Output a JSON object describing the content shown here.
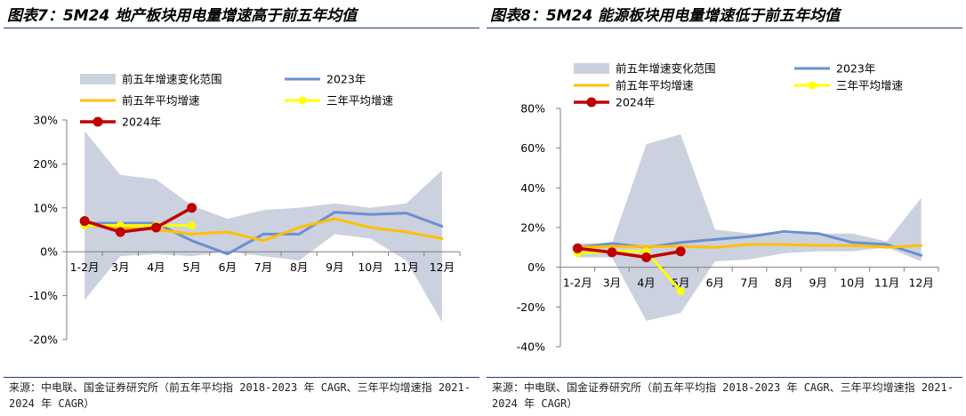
{
  "panels": [
    {
      "title": "图表7：5M24 地产板块用电量增速高于前五年均值",
      "source": "来源：中电联、国金证券研究所（前五年平均指 2018-2023 年 CAGR、三年平均增速指 2021-2024 年 CAGR）"
    },
    {
      "title": "图表8：5M24 能源板块用电量增速低于前五年均值",
      "source": "来源：中电联、国金证券研究所（前五年平均指 2018-2023 年 CAGR、三年平均增速指 2021-2024 年 CAGR）"
    }
  ],
  "colors": {
    "band": "#cbd1de",
    "s2023": "#6b8fd0",
    "avg5": "#ffc000",
    "avg3": "#ffff00",
    "s2024": "#c00000",
    "axis": "#7f7f7f",
    "title_rule": "#1f3b73"
  },
  "chart_data": [
    {
      "type": "line",
      "title": "",
      "x": [
        "1-2月",
        "3月",
        "4月",
        "5月",
        "6月",
        "7月",
        "8月",
        "9月",
        "10月",
        "11月",
        "12月"
      ],
      "ylim": [
        -20,
        30
      ],
      "yticks": [
        -20,
        -10,
        0,
        10,
        20,
        30
      ],
      "ytick_labels": [
        "-20%",
        "-10%",
        "0%",
        "10%",
        "20%",
        "30%"
      ],
      "legend_position": "top",
      "legend": [
        "前五年增速变化范围",
        "2023年",
        "前五年平均增速",
        "三年平均增速",
        "2024年"
      ],
      "band": {
        "name": "前五年增速变化范围",
        "upper": [
          27.5,
          17.5,
          16.5,
          10.5,
          7.5,
          9.5,
          10.0,
          11.0,
          10.0,
          11.0,
          18.5
        ],
        "lower": [
          -11.0,
          -1.0,
          -0.5,
          -1.0,
          0.0,
          -1.0,
          -2.0,
          4.0,
          3.0,
          -2.0,
          -16.0
        ]
      },
      "series": [
        {
          "name": "2023年",
          "values": [
            6.5,
            6.5,
            6.5,
            2.5,
            -0.5,
            4.0,
            4.0,
            9.0,
            8.5,
            8.8,
            5.8
          ]
        },
        {
          "name": "前五年平均增速",
          "values": [
            6.0,
            5.5,
            5.0,
            4.0,
            4.5,
            2.5,
            5.5,
            7.5,
            5.5,
            4.5,
            3.0
          ]
        },
        {
          "name": "三年平均增速",
          "values": [
            6.0,
            6.0,
            6.0,
            6.0,
            null,
            null,
            null,
            null,
            null,
            null,
            null
          ]
        },
        {
          "name": "2024年",
          "values": [
            7.0,
            4.5,
            5.5,
            10.0,
            null,
            null,
            null,
            null,
            null,
            null,
            null
          ]
        }
      ]
    },
    {
      "type": "line",
      "title": "",
      "x": [
        "1-2月",
        "3月",
        "4月",
        "5月",
        "6月",
        "7月",
        "8月",
        "9月",
        "10月",
        "11月",
        "12月"
      ],
      "ylim": [
        -40,
        80
      ],
      "yticks": [
        -40,
        -20,
        0,
        20,
        40,
        60,
        80
      ],
      "ytick_labels": [
        "-40%",
        "-20%",
        "0%",
        "20%",
        "40%",
        "60%",
        "80%"
      ],
      "legend_position": "top",
      "legend": [
        "前五年增速变化范围",
        "2023年",
        "前五年平均增速",
        "三年平均增速",
        "2024年"
      ],
      "band": {
        "name": "前五年增速变化范围",
        "upper": [
          12.0,
          12.0,
          62.0,
          67.0,
          19.0,
          17.0,
          17.0,
          17.0,
          17.0,
          13.0,
          35.0
        ],
        "lower": [
          5.0,
          5.0,
          -27.0,
          -23.0,
          3.0,
          4.0,
          7.0,
          8.0,
          8.0,
          10.0,
          3.0
        ]
      },
      "series": [
        {
          "name": "2023年",
          "values": [
            10.0,
            12.0,
            10.0,
            12.5,
            14.0,
            15.5,
            18.0,
            17.0,
            12.5,
            11.5,
            6.0
          ]
        },
        {
          "name": "前五年平均增速",
          "values": [
            10.0,
            10.5,
            10.5,
            10.5,
            10.0,
            11.5,
            11.5,
            11.0,
            11.0,
            10.0,
            11.0
          ]
        },
        {
          "name": "三年平均增速",
          "values": [
            7.0,
            8.0,
            8.0,
            -12.0,
            null,
            null,
            null,
            null,
            null,
            null,
            null
          ]
        },
        {
          "name": "2024年",
          "values": [
            9.5,
            7.5,
            5.0,
            8.0,
            null,
            null,
            null,
            null,
            null,
            null,
            null
          ]
        }
      ]
    }
  ]
}
